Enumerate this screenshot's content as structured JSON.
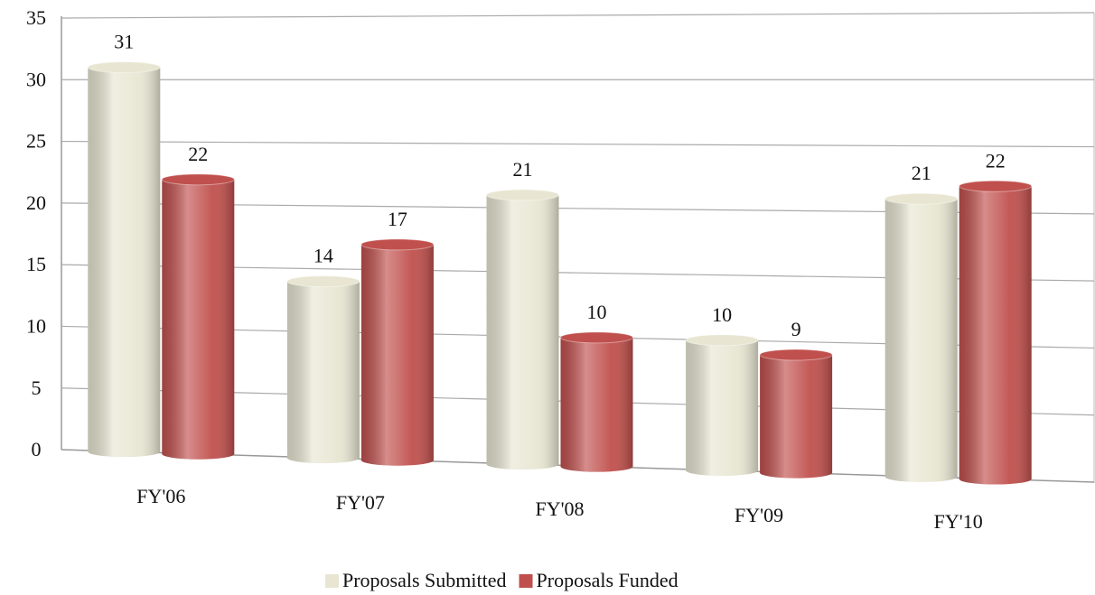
{
  "chart_data": {
    "type": "bar",
    "categories": [
      "FY'06",
      "FY'07",
      "FY'08",
      "FY'09",
      "FY'10"
    ],
    "series": [
      {
        "name": "Proposals Submitted",
        "color": "#e8e6d2",
        "values": [
          31,
          14,
          21,
          10,
          21
        ]
      },
      {
        "name": "Proposals Funded",
        "color": "#c0504d",
        "values": [
          22,
          17,
          10,
          9,
          22
        ]
      }
    ],
    "ylim": [
      0,
      35
    ],
    "yticks": [
      0,
      5,
      10,
      15,
      20,
      25,
      30,
      35
    ],
    "grid": true,
    "legend": "bottom"
  }
}
